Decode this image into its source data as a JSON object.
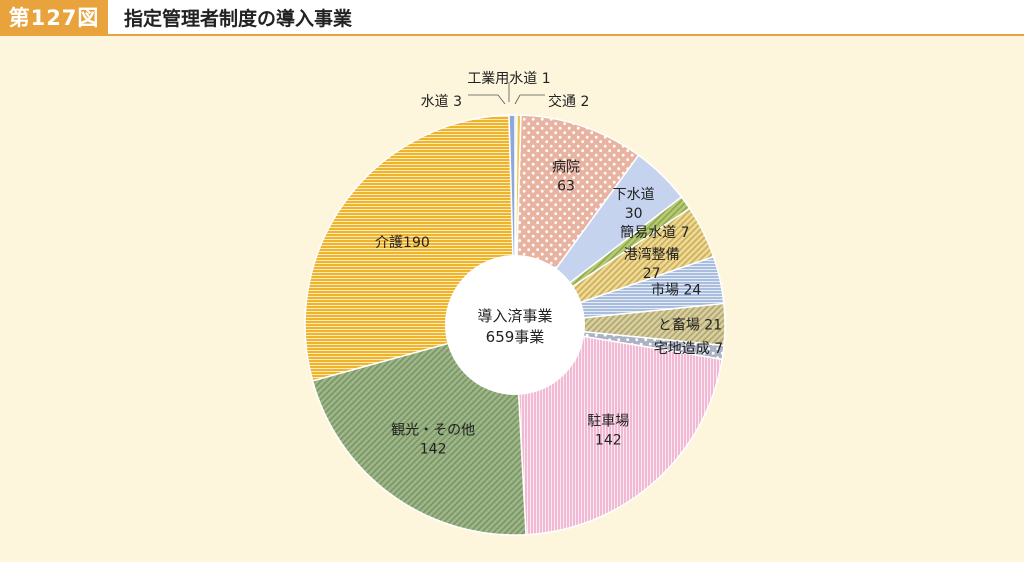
{
  "header": {
    "figure_number": "第127図",
    "title": "指定管理者制度の導入事業"
  },
  "chart_data": {
    "type": "pie",
    "title": "指定管理者制度の導入事業",
    "center_label": [
      "導入済事業",
      "659事業"
    ],
    "total": 659,
    "slices": [
      {
        "key": "kogyo",
        "label": "工業用水道",
        "value": 1,
        "text": "工業用水道 1",
        "color": "#7fa6d6",
        "pattern": "solid"
      },
      {
        "key": "kotsu",
        "label": "交通",
        "value": 2,
        "text": "交通 2",
        "color": "#f2c542",
        "pattern": "solid"
      },
      {
        "key": "byoin",
        "label": "病院",
        "value": 63,
        "text": "病院\n63",
        "color": "#e8b3a1",
        "pattern": "dots"
      },
      {
        "key": "gesui",
        "label": "下水道",
        "value": 30,
        "text": "下水道\n30",
        "color": "#c5d3ee",
        "pattern": "solid"
      },
      {
        "key": "kani",
        "label": "簡易水道",
        "value": 7,
        "text": "簡易水道 7",
        "color": "#b5cc6e",
        "pattern": "diag"
      },
      {
        "key": "kowan",
        "label": "港湾整備",
        "value": 27,
        "text": "港湾整備\n27",
        "color": "#f4d98a",
        "pattern": "diag"
      },
      {
        "key": "ichiba",
        "label": "市場",
        "value": 24,
        "text": "市場 24",
        "color": "#a9bedf",
        "pattern": "hlines"
      },
      {
        "key": "tochiku",
        "label": "と畜場",
        "value": 21,
        "text": "と畜場 21",
        "color": "#d9cf98",
        "pattern": "diag"
      },
      {
        "key": "takuchi",
        "label": "宅地造成",
        "value": 7,
        "text": "宅地造成 7",
        "color": "#aab2c4",
        "pattern": "dots"
      },
      {
        "key": "chusha",
        "label": "駐車場",
        "value": 142,
        "text": "駐車場\n142",
        "color": "#f1b9d3",
        "pattern": "vlines"
      },
      {
        "key": "kanko",
        "label": "観光・その他",
        "value": 142,
        "text": "観光・その他\n142",
        "color": "#9bb784",
        "pattern": "diag"
      },
      {
        "key": "kaigo",
        "label": "介護",
        "value": 190,
        "text": "介護190",
        "color": "#f0b42a",
        "pattern": "hlines"
      },
      {
        "key": "suido",
        "label": "水道",
        "value": 3,
        "text": "水道 3",
        "color": "#8aa9d8",
        "pattern": "solid"
      }
    ]
  }
}
